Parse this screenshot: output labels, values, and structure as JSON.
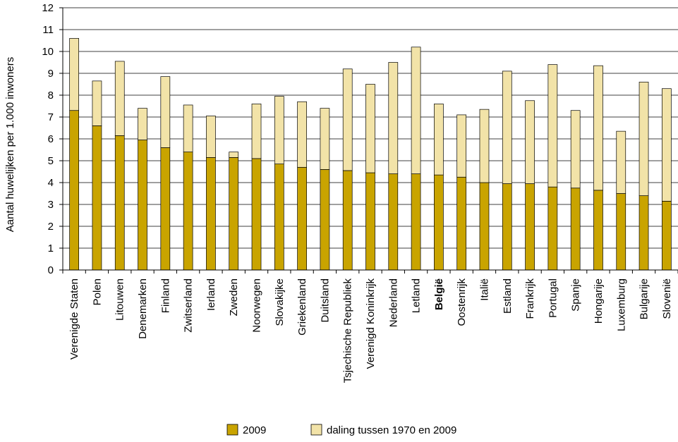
{
  "chart_data": {
    "type": "bar",
    "stacked": true,
    "ylabel": "Aantal huwelijken per 1.000 inwoners",
    "xlabel": "",
    "ylim": [
      0,
      12
    ],
    "yticks": [
      0,
      1,
      2,
      3,
      4,
      5,
      6,
      7,
      8,
      9,
      10,
      11,
      12
    ],
    "grid": "horizontal",
    "legend_position": "bottom",
    "highlight_category": "België",
    "categories": [
      "Verenigde Staten",
      "Polen",
      "Litouwen",
      "Denemarken",
      "Finland",
      "Zwitserland",
      "Ierland",
      "Zweden",
      "Noorwegen",
      "Slovakijke",
      "Griekenland",
      "Duitsland",
      "Tsjechische Republiek",
      "Verenigd Koninkrijk",
      "Nederland",
      "Letland",
      "België",
      "Oostenrijk",
      "Italië",
      "Estland",
      "Frankrijk",
      "Portugal",
      "Spanje",
      "Hongarije",
      "Luxemburg",
      "Bulgarije",
      "Slovenië"
    ],
    "series": [
      {
        "name": "2009",
        "color": "#c9a400",
        "values": [
          7.3,
          6.6,
          6.15,
          5.95,
          5.6,
          5.4,
          5.15,
          5.15,
          5.1,
          4.85,
          4.7,
          4.6,
          4.55,
          4.45,
          4.4,
          4.4,
          4.35,
          4.25,
          4.0,
          3.95,
          3.95,
          3.8,
          3.75,
          3.65,
          3.5,
          3.4,
          3.15
        ]
      },
      {
        "name": "daling tussen 1970 en 2009",
        "color": "#f2e3a8",
        "values": [
          3.3,
          2.05,
          3.4,
          1.45,
          3.25,
          2.15,
          1.9,
          0.25,
          2.5,
          3.1,
          3.0,
          2.8,
          4.65,
          4.05,
          5.1,
          5.8,
          3.25,
          2.85,
          3.35,
          5.15,
          3.8,
          5.6,
          3.55,
          5.7,
          2.85,
          5.2,
          5.15
        ]
      }
    ]
  }
}
